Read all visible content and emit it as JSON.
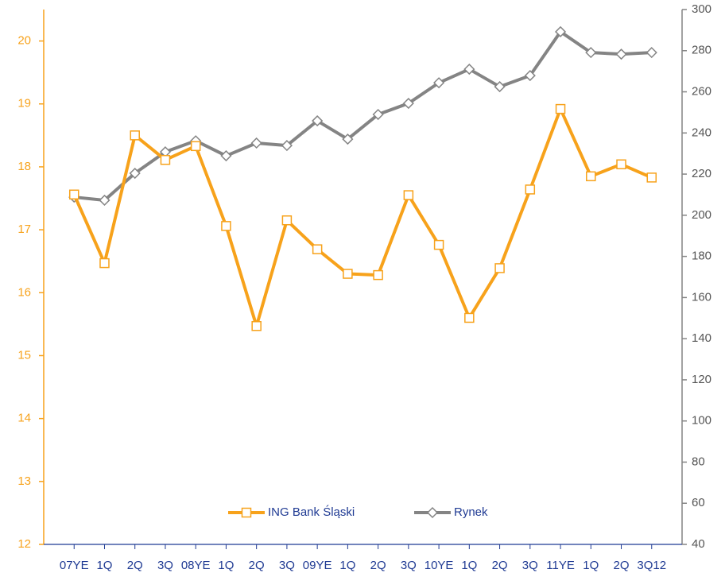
{
  "chart_data": {
    "type": "line",
    "categories": [
      "07YE",
      "1Q",
      "2Q",
      "3Q",
      "08YE",
      "1Q",
      "2Q",
      "3Q",
      "09YE",
      "1Q",
      "2Q",
      "3Q",
      "10YE",
      "1Q",
      "2Q",
      "3Q",
      "11YE",
      "1Q",
      "2Q",
      "3Q12"
    ],
    "series": [
      {
        "name": "ING Bank Śląski",
        "color": "#f7a21b",
        "values": [
          17.56,
          16.47,
          18.5,
          18.11,
          18.33,
          17.06,
          15.47,
          17.15,
          16.69,
          16.3,
          16.28,
          17.55,
          16.76,
          15.6,
          16.39,
          17.64,
          18.92,
          17.85,
          18.04,
          17.83
        ]
      },
      {
        "name": "Rynek",
        "color": "#848484",
        "axis": "y2",
        "values": [
          208.8,
          207.3,
          220.4,
          230.8,
          236.2,
          228.9,
          235.1,
          233.9,
          245.9,
          237.0,
          249.0,
          254.4,
          264.4,
          271.0,
          262.5,
          267.9,
          289.2,
          279.1,
          278.3,
          279.1
        ]
      }
    ],
    "ylim": [
      12,
      20.5
    ],
    "yticks": [
      12,
      13,
      14,
      15,
      16,
      17,
      18,
      19,
      20
    ],
    "y2lim": [
      40,
      300
    ],
    "y2ticks": [
      40,
      60,
      80,
      100,
      120,
      140,
      160,
      180,
      200,
      220,
      240,
      260,
      280,
      300
    ],
    "legend": "bottom"
  }
}
